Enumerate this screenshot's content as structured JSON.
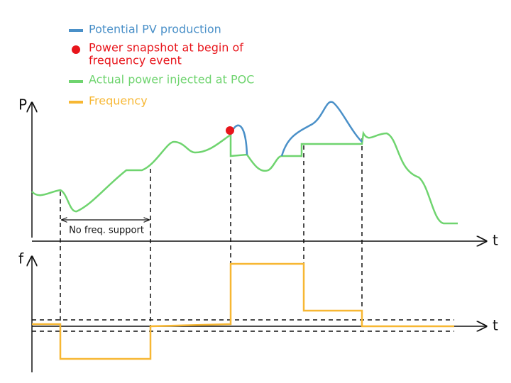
{
  "legend": [
    {
      "label": "Potential PV production"
    },
    {
      "label": [
        "Power snapshot at begin of",
        "frequency event"
      ]
    },
    {
      "label": "Actual power injected at POC"
    },
    {
      "label": "Frequency"
    }
  ],
  "power_axis": {
    "y_label": "P",
    "x_label": "t"
  },
  "frequency_axis": {
    "y_label": "f",
    "x_label": "t"
  },
  "annotation": "No freq. support"
}
